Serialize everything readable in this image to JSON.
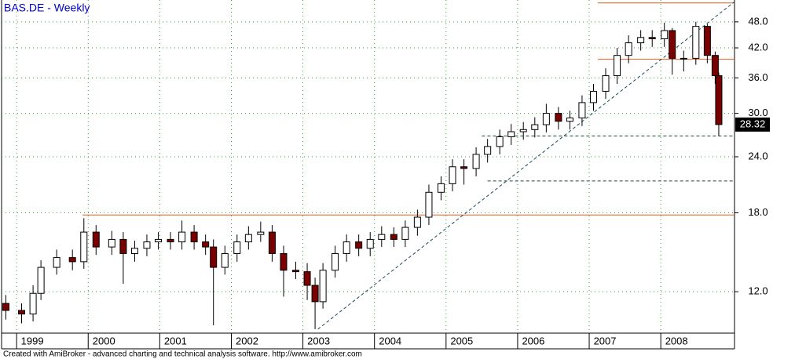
{
  "chart_data": {
    "type": "candlestick",
    "title": "BAS.DE - Weekly",
    "footer": "Created with AmiBroker - advanced charting and technical analysis software. http://www.amibroker.com",
    "log_scale": true,
    "grid": true,
    "up_color": "#ffffff",
    "down_color": "#7a0000",
    "wick_color": "#000000",
    "title_color": "#0000cc",
    "x": [
      1998.85,
      1999.07,
      1999.23,
      1999.34,
      1999.56,
      1999.78,
      1999.94,
      2000.11,
      2000.33,
      2000.49,
      2000.65,
      2000.82,
      2000.98,
      2001.15,
      2001.31,
      2001.48,
      2001.64,
      2001.75,
      2001.91,
      2002.08,
      2002.24,
      2002.41,
      2002.57,
      2002.73,
      2002.9,
      2003.06,
      2003.17,
      2003.28,
      2003.45,
      2003.61,
      2003.78,
      2003.94,
      2004.1,
      2004.27,
      2004.43,
      2004.6,
      2004.76,
      2004.93,
      2005.09,
      2005.25,
      2005.42,
      2005.58,
      2005.75,
      2005.91,
      2006.08,
      2006.24,
      2006.4,
      2006.57,
      2006.73,
      2006.9,
      2007.06,
      2007.23,
      2007.39,
      2007.55,
      2007.72,
      2007.88,
      2008.05,
      2008.16,
      2008.32,
      2008.49,
      2008.65,
      2008.76,
      2008.81
    ],
    "open": [
      11.3,
      10.9,
      10.7,
      11.9,
      13.6,
      14.3,
      14.0,
      16.3,
      15.1,
      15.7,
      14.6,
      15.0,
      15.5,
      15.7,
      15.5,
      16.3,
      15.5,
      15.1,
      13.6,
      14.6,
      15.5,
      16.1,
      16.3,
      14.6,
      13.4,
      13.3,
      12.4,
      11.4,
      13.4,
      14.6,
      15.5,
      15.0,
      15.7,
      16.1,
      15.7,
      16.7,
      17.6,
      20.0,
      20.9,
      22.8,
      22.6,
      24.3,
      25.3,
      26.6,
      27.3,
      27.6,
      28.3,
      30.0,
      28.8,
      29.3,
      31.7,
      33.6,
      36.4,
      40.4,
      43.1,
      44.3,
      44.0,
      45.9,
      39.8,
      39.8,
      46.9,
      40.4,
      36.4
    ],
    "high": [
      11.8,
      11.3,
      12.4,
      14.1,
      14.9,
      14.9,
      17.5,
      16.9,
      16.4,
      16.3,
      15.6,
      16.1,
      16.3,
      16.3,
      17.3,
      16.9,
      16.1,
      15.7,
      15.2,
      16.1,
      16.8,
      17.2,
      16.9,
      15.2,
      14.0,
      13.9,
      12.9,
      13.9,
      15.2,
      16.1,
      16.1,
      16.3,
      16.8,
      16.7,
      17.3,
      18.3,
      20.8,
      21.7,
      23.7,
      23.7,
      25.2,
      26.3,
      27.6,
      28.4,
      28.7,
      29.4,
      31.5,
      31.0,
      30.4,
      32.9,
      34.9,
      37.8,
      42.0,
      44.8,
      46.0,
      46.0,
      47.8,
      46.5,
      41.4,
      48.0,
      47.5,
      41.2,
      37.0
    ],
    "low": [
      10.4,
      10.2,
      10.3,
      11.5,
      13.1,
      13.4,
      13.5,
      14.5,
      14.5,
      12.5,
      14.0,
      14.4,
      14.9,
      14.9,
      14.9,
      14.9,
      14.5,
      10.1,
      13.1,
      14.0,
      14.9,
      15.5,
      14.0,
      11.7,
      12.8,
      11.5,
      9.9,
      11.0,
      12.9,
      14.0,
      14.4,
      14.4,
      15.1,
      15.1,
      15.1,
      16.0,
      16.9,
      19.2,
      20.1,
      20.8,
      21.7,
      23.3,
      24.3,
      25.5,
      26.2,
      26.5,
      27.2,
      27.6,
      27.6,
      28.1,
      30.4,
      32.3,
      34.9,
      38.8,
      41.4,
      42.2,
      42.2,
      36.6,
      37.2,
      38.5,
      38.8,
      34.9,
      26.7
    ],
    "close": [
      10.9,
      10.7,
      11.9,
      13.6,
      14.3,
      14.0,
      16.3,
      15.1,
      15.7,
      14.6,
      15.0,
      15.5,
      15.7,
      15.5,
      16.3,
      15.5,
      15.1,
      13.6,
      14.6,
      15.5,
      16.1,
      16.3,
      14.6,
      13.4,
      13.3,
      12.4,
      11.4,
      13.4,
      14.6,
      15.5,
      15.0,
      15.7,
      16.1,
      15.7,
      16.7,
      17.6,
      20.0,
      20.9,
      22.8,
      22.6,
      24.3,
      25.3,
      26.6,
      27.3,
      27.6,
      28.3,
      30.0,
      28.8,
      29.3,
      31.7,
      33.6,
      36.4,
      40.4,
      43.1,
      44.3,
      44.0,
      45.9,
      39.8,
      39.8,
      46.9,
      40.4,
      36.4,
      28.32
    ],
    "xlim": [
      1998.79,
      2009.03
    ],
    "ylim": [
      9.7,
      53.7
    ],
    "xticks": [
      1999,
      2000,
      2001,
      2002,
      2003,
      2004,
      2005,
      2006,
      2007,
      2008
    ],
    "xtick_labels": [
      "1999",
      "2000",
      "2001",
      "2002",
      "2003",
      "2004",
      "2005",
      "2006",
      "2007",
      "2008"
    ],
    "yticks": [
      {
        "value": 12,
        "label": "12.0"
      },
      {
        "value": 18,
        "label": "18.0"
      },
      {
        "value": 24,
        "label": "24.0"
      },
      {
        "value": 30,
        "label": "30.0"
      },
      {
        "value": 36,
        "label": "36.0"
      },
      {
        "value": 42,
        "label": "42.0"
      },
      {
        "value": 48,
        "label": "48.0"
      }
    ],
    "lines": [
      {
        "color": "#e05a20",
        "dash": false,
        "x": [
          1999.92,
          2009.03
        ],
        "y": [
          17.8,
          17.8
        ]
      },
      {
        "color": "#e05a20",
        "dash": false,
        "x": [
          2007.12,
          2009.03
        ],
        "y": [
          39.6,
          39.6
        ]
      },
      {
        "color": "#e05a20",
        "dash": false,
        "x": [
          2007.12,
          2009.03
        ],
        "y": [
          52.9,
          52.9
        ]
      },
      {
        "color": "#1a4a3a",
        "dash": true,
        "x": [
          2005.5,
          2009.03
        ],
        "y": [
          26.7,
          26.7
        ]
      },
      {
        "color": "#1a4a3a",
        "dash": true,
        "x": [
          2005.58,
          2009.03
        ],
        "y": [
          21.2,
          21.2
        ]
      },
      {
        "color": "#1a4a5a",
        "dash": true,
        "x": [
          2003.21,
          2009.03
        ],
        "y": [
          9.9,
          53.2
        ]
      }
    ]
  }
}
